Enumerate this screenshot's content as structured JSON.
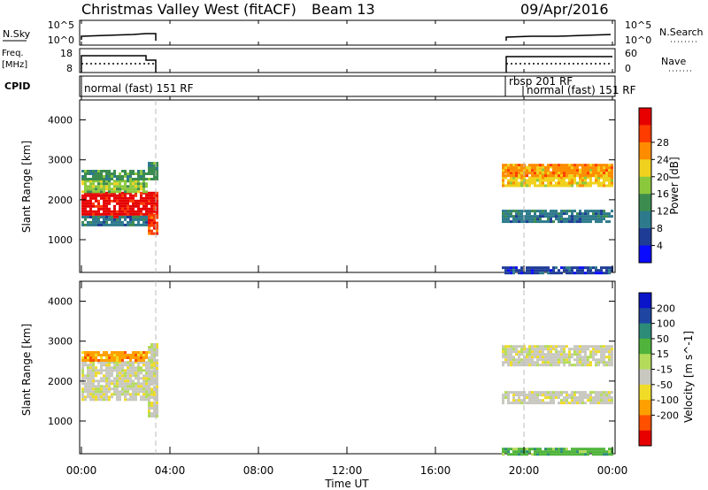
{
  "header": {
    "title": "Christmas Valley West (fitACF)",
    "beam": "Beam 13",
    "date": "09/Apr/2016"
  },
  "noise_panel": {
    "left_label": "N.Sky",
    "left_ticks": [
      "10^5",
      "10^0"
    ],
    "right_ticks": [
      "10^5",
      "10^0"
    ],
    "right_label": "N.Search"
  },
  "freq_panel": {
    "left_label_1": "Freq.",
    "left_label_2": "[MHz]",
    "left_ticks": [
      "18",
      "8"
    ],
    "right_ticks": [
      "60",
      "0"
    ],
    "right_label": "Nave"
  },
  "cpid_panel": {
    "label": "CPID",
    "segments": [
      "normal (fast) 151 RF",
      "rbsp 201 RF",
      "normal (fast) 151 RF"
    ]
  },
  "x_axis": {
    "label": "Time UT",
    "ticks": [
      "00:00",
      "04:00",
      "08:00",
      "12:00",
      "16:00",
      "20:00",
      "00:00"
    ]
  },
  "colors": {
    "power": [
      "#0a0aff",
      "#1e3c96",
      "#2d7a8c",
      "#3c8c50",
      "#8cc83c",
      "#f0d21e",
      "#ff8c00",
      "#ff3c00",
      "#e60000"
    ],
    "velocity": [
      "#e60000",
      "#ff5000",
      "#ffa000",
      "#f0dc28",
      "#c8c8c0",
      "#b4dc5a",
      "#50b43c",
      "#2d8c78",
      "#1e46a0",
      "#0a14c8"
    ]
  },
  "chart_data": [
    {
      "type": "heatmap",
      "name": "Power",
      "ylabel": "Slant Range [km]",
      "ylim": [
        180,
        4500
      ],
      "yticks": [
        1000,
        2000,
        3000,
        4000
      ],
      "xlim_hours": [
        0,
        24
      ],
      "colorbar_label": "Power [dB]",
      "colorbar_ticks": [
        4,
        8,
        12,
        16,
        20,
        24,
        28
      ],
      "bands": [
        {
          "t0": 0.0,
          "t1": 3.4,
          "r0": 1600,
          "r1": 2200,
          "level": 8
        },
        {
          "t0": 0.0,
          "t1": 3.0,
          "r0": 2200,
          "r1": 2500,
          "level": 4
        },
        {
          "t0": 0.0,
          "t1": 3.0,
          "r0": 2550,
          "r1": 2750,
          "level": 3
        },
        {
          "t0": 0.0,
          "t1": 3.0,
          "r0": 1400,
          "r1": 1600,
          "level": 2
        },
        {
          "t0": 3.0,
          "t1": 3.4,
          "r0": 2500,
          "r1": 2950,
          "level": 3
        },
        {
          "t0": 3.0,
          "t1": 3.4,
          "r0": 1150,
          "r1": 1650,
          "level": 7
        },
        {
          "t0": 19.0,
          "t1": 24.0,
          "r0": 2350,
          "r1": 2850,
          "level": 5
        },
        {
          "t0": 19.0,
          "t1": 24.0,
          "r0": 2600,
          "r1": 2900,
          "level": 6
        },
        {
          "t0": 19.0,
          "t1": 24.0,
          "r0": 1450,
          "r1": 1750,
          "level": 2
        },
        {
          "t0": 19.0,
          "t1": 24.0,
          "r0": 180,
          "r1": 330,
          "level": 1
        }
      ]
    },
    {
      "type": "heatmap",
      "name": "Velocity",
      "ylabel": "Slant Range [km]",
      "ylim": [
        180,
        4500
      ],
      "yticks": [
        1000,
        2000,
        3000,
        4000
      ],
      "xlim_hours": [
        0,
        24
      ],
      "colorbar_label": "Velocity [m s^-1]",
      "colorbar_ticks": [
        200,
        100,
        50,
        15,
        -15,
        -50,
        -100,
        -200
      ],
      "bands": [
        {
          "t0": 0.0,
          "t1": 3.4,
          "r0": 1550,
          "r1": 2500,
          "level": 4
        },
        {
          "t0": 0.0,
          "t1": 3.0,
          "r0": 2550,
          "r1": 2750,
          "level": 2
        },
        {
          "t0": 3.0,
          "t1": 3.4,
          "r0": 1150,
          "r1": 2950,
          "level": 4
        },
        {
          "t0": 19.0,
          "t1": 24.0,
          "r0": 2400,
          "r1": 2900,
          "level": 4
        },
        {
          "t0": 19.0,
          "t1": 24.0,
          "r0": 1450,
          "r1": 1750,
          "level": 4
        },
        {
          "t0": 19.0,
          "t1": 24.0,
          "r0": 180,
          "r1": 330,
          "level": 6
        }
      ]
    }
  ]
}
